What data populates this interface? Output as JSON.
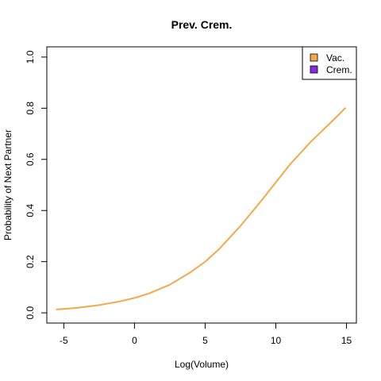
{
  "chart_data": {
    "type": "line",
    "title": "Prev. Crem.",
    "xlabel": "Log(Volume)",
    "ylabel": "Probability of Next Partner",
    "xlim": [
      -6.2,
      15.7
    ],
    "ylim": [
      -0.04,
      1.04
    ],
    "xticks": [
      -5,
      0,
      5,
      10,
      15
    ],
    "xtick_labels": [
      "-5",
      "0",
      "5",
      "10",
      "15"
    ],
    "yticks": [
      0.0,
      0.2,
      0.4,
      0.6,
      0.8,
      1.0
    ],
    "ytick_labels": [
      "0.0",
      "0.2",
      "0.4",
      "0.6",
      "0.8",
      "1.0"
    ],
    "legend_position": "top-right",
    "legend": [
      {
        "label": "Vac.",
        "color": "#F5A84A"
      },
      {
        "label": "Crem.",
        "color": "#8A2BE2"
      }
    ],
    "series": [
      {
        "name": "Vac.",
        "color": "#F5A84A",
        "x": [
          -5.5,
          -4,
          -2.5,
          -1,
          0,
          1,
          2.5,
          4,
          5,
          6,
          7.5,
          9,
          10,
          11,
          12.5,
          14,
          14.9
        ],
        "y": [
          0.013,
          0.02,
          0.03,
          0.045,
          0.058,
          0.075,
          0.11,
          0.16,
          0.2,
          0.25,
          0.34,
          0.44,
          0.51,
          0.58,
          0.67,
          0.75,
          0.8
        ]
      }
    ]
  }
}
